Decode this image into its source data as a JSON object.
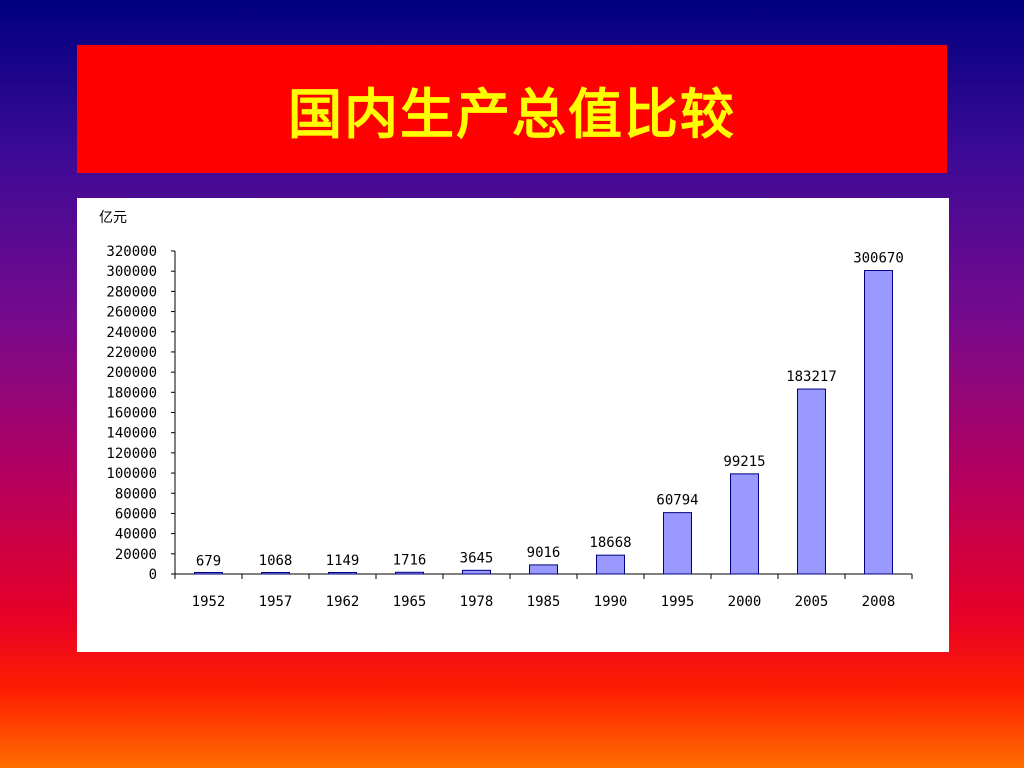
{
  "slide": {
    "title": "国内生产总值比较"
  },
  "chart_data": {
    "type": "bar",
    "unit_label": "亿元",
    "categories": [
      "1952",
      "1957",
      "1962",
      "1965",
      "1978",
      "1985",
      "1990",
      "1995",
      "2000",
      "2005",
      "2008"
    ],
    "values": [
      679,
      1068,
      1149,
      1716,
      3645,
      9016,
      18668,
      60794,
      99215,
      183217,
      300670
    ],
    "data_labels": [
      "679",
      "1068",
      "1149",
      "1716",
      "3645",
      "9016",
      "18668",
      "60794",
      "99215",
      "183217",
      "300670"
    ],
    "ylim": [
      0,
      320000
    ],
    "y_ticks": [
      0,
      20000,
      40000,
      60000,
      80000,
      100000,
      120000,
      140000,
      160000,
      180000,
      200000,
      220000,
      240000,
      260000,
      280000,
      300000,
      320000
    ],
    "title": "",
    "xlabel": "",
    "ylabel": "",
    "grid": false,
    "legend": "none",
    "bar_color": "#9999ff",
    "bar_edge_color": "#000080"
  }
}
